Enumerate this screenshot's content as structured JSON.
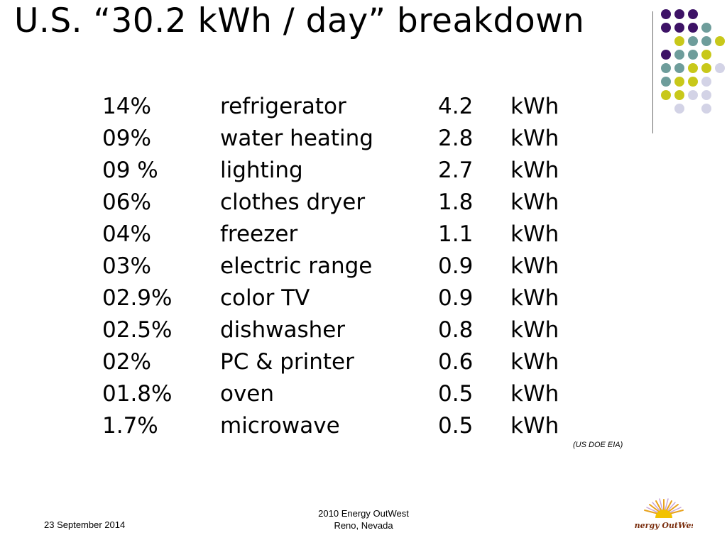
{
  "slide": {
    "title": "U.S. “30.2 kWh / day” breakdown"
  },
  "table": {
    "rows": [
      {
        "percent": "14%",
        "appliance": "refrigerator",
        "value": "4.2",
        "unit": "kWh"
      },
      {
        "percent": "09%",
        "appliance": "water heating",
        "value": "2.8",
        "unit": "kWh"
      },
      {
        "percent": "09 %",
        "appliance": "lighting",
        "value": "2.7",
        "unit": "kWh"
      },
      {
        "percent": "06%",
        "appliance": "clothes dryer",
        "value": "1.8",
        "unit": "kWh"
      },
      {
        "percent": "04%",
        "appliance": "freezer",
        "value": "1.1",
        "unit": "kWh"
      },
      {
        "percent": "03%",
        "appliance": "electric range",
        "value": "0.9",
        "unit": "kWh"
      },
      {
        "percent": "02.9%",
        "appliance": "color TV",
        "value": "0.9",
        "unit": "kWh"
      },
      {
        "percent": "02.5%",
        "appliance": "dishwasher",
        "value": "0.8",
        "unit": "kWh"
      },
      {
        "percent": "02%",
        "appliance": "PC & printer",
        "value": "0.6",
        "unit": "kWh"
      },
      {
        "percent": "01.8%",
        "appliance": "oven",
        "value": "0.5",
        "unit": "kWh"
      },
      {
        "percent": "1.7%",
        "appliance": "microwave",
        "value": "0.5",
        "unit": "kWh"
      }
    ]
  },
  "source_note": "(US DOE EIA)",
  "footer": {
    "date": "23 September 2014",
    "event_line1": "2010 Energy OutWest",
    "event_line2": "Reno, Nevada",
    "logo_text": "Energy OutWest"
  },
  "decoration": {
    "colors": {
      "purple": "#3d1266",
      "teal": "#6e9d9b",
      "yellow": "#c8c81a",
      "lavender": "#d3d3e6"
    },
    "dot_pattern": [
      [
        "purple",
        "purple",
        "purple",
        null
      ],
      [
        "purple",
        "purple",
        "purple",
        "teal"
      ],
      [
        null,
        "yellow",
        "teal",
        "teal",
        "yellow"
      ],
      [
        "purple",
        "teal",
        "teal",
        "yellow"
      ],
      [
        "teal",
        "teal",
        "yellow",
        "yellow",
        "lavender"
      ],
      [
        "teal",
        "yellow",
        "yellow",
        "lavender"
      ],
      [
        "yellow",
        "yellow",
        "lavender",
        "lavender"
      ],
      [
        null,
        "lavender",
        null,
        "lavender"
      ]
    ]
  }
}
